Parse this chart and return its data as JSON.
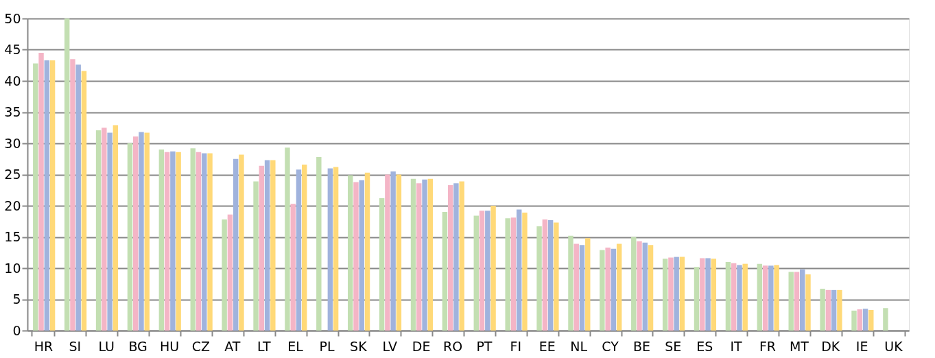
{
  "chart_data": {
    "type": "bar",
    "categories": [
      "HR",
      "SI",
      "LU",
      "BG",
      "HU",
      "CZ",
      "AT",
      "LT",
      "EL",
      "PL",
      "SK",
      "LV",
      "DE",
      "RO",
      "PT",
      "FI",
      "EE",
      "NL",
      "CY",
      "BE",
      "SE",
      "ES",
      "IT",
      "FR",
      "MT",
      "DK",
      "IE",
      "UK"
    ],
    "series": [
      {
        "color": "#c3dfb2",
        "values": [
          42.8,
          50,
          32.1,
          30.0,
          29.0,
          29.2,
          17.8,
          23.9,
          29.3,
          27.8,
          24.9,
          21.2,
          24.3,
          19.0,
          18.4,
          18.0,
          16.7,
          15.2,
          12.9,
          15.0,
          11.5,
          10.2,
          11.0,
          10.7,
          9.4,
          6.7,
          3.2,
          3.6
        ]
      },
      {
        "color": "#f4b5c6",
        "values": [
          44.5,
          43.5,
          32.5,
          31.1,
          28.6,
          28.6,
          18.6,
          26.4,
          20.3,
          null,
          23.8,
          25.0,
          23.6,
          23.3,
          19.2,
          18.1,
          17.8,
          13.9,
          13.3,
          14.3,
          11.7,
          11.6,
          10.8,
          10.4,
          9.4,
          6.5,
          3.4,
          null
        ]
      },
      {
        "color": "#a0b3dd",
        "values": [
          43.3,
          42.6,
          31.7,
          31.8,
          28.7,
          28.4,
          27.5,
          27.3,
          25.8,
          26.0,
          24.1,
          25.5,
          24.2,
          23.6,
          19.2,
          19.4,
          17.7,
          13.7,
          13.1,
          14.1,
          11.8,
          11.6,
          10.5,
          10.4,
          9.8,
          6.5,
          3.5,
          null
        ]
      },
      {
        "color": "#ffd978",
        "values": [
          43.3,
          41.6,
          32.9,
          31.7,
          28.6,
          28.4,
          28.2,
          27.3,
          26.6,
          26.2,
          25.3,
          25.0,
          24.3,
          23.9,
          20.0,
          18.9,
          17.3,
          14.8,
          13.9,
          13.7,
          11.8,
          11.5,
          10.7,
          10.5,
          9.0,
          6.5,
          3.3,
          null
        ]
      }
    ],
    "ylim": [
      0,
      50
    ],
    "yticks": [
      0,
      5,
      10,
      15,
      20,
      25,
      30,
      35,
      40,
      45,
      50
    ],
    "grid": "y",
    "legend": false
  }
}
